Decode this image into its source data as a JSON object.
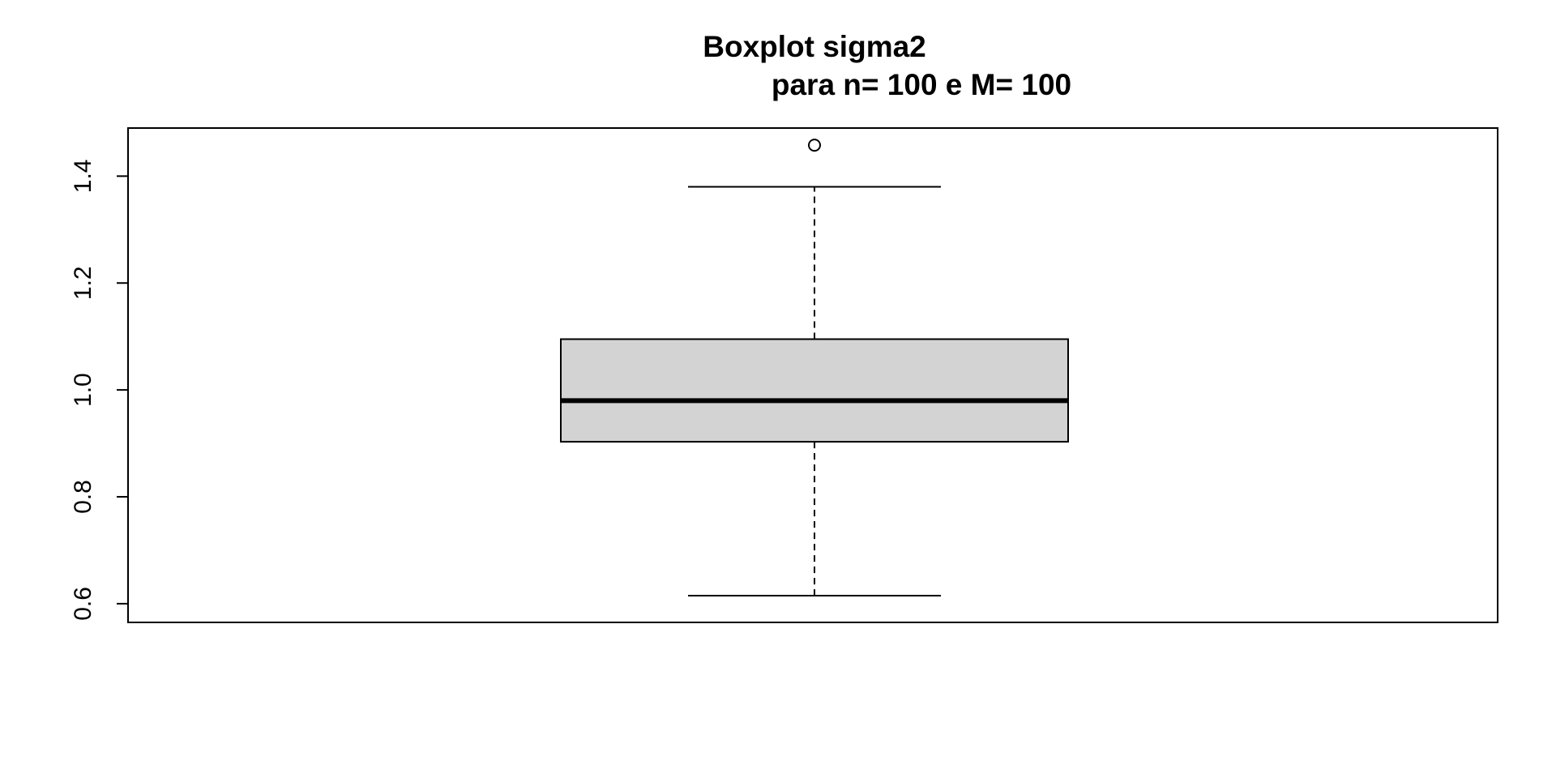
{
  "chart_data": {
    "type": "boxplot",
    "title": "Boxplot sigma2",
    "subtitle": "para n= 100 e M= 100",
    "xlabel": "",
    "ylabel": "",
    "ylim": [
      0.565,
      1.49
    ],
    "y_ticks": [
      0.6,
      0.8,
      1.0,
      1.2,
      1.4
    ],
    "y_tick_labels": [
      "0.6",
      "0.8",
      "1.0",
      "1.2",
      "1.4"
    ],
    "grid": false,
    "box": {
      "whisker_low": 0.615,
      "q1": 0.903,
      "median": 0.98,
      "q3": 1.095,
      "whisker_high": 1.38,
      "outliers": [
        1.458
      ]
    },
    "colors": {
      "box_fill": "#d3d3d3",
      "line": "#000000"
    }
  }
}
